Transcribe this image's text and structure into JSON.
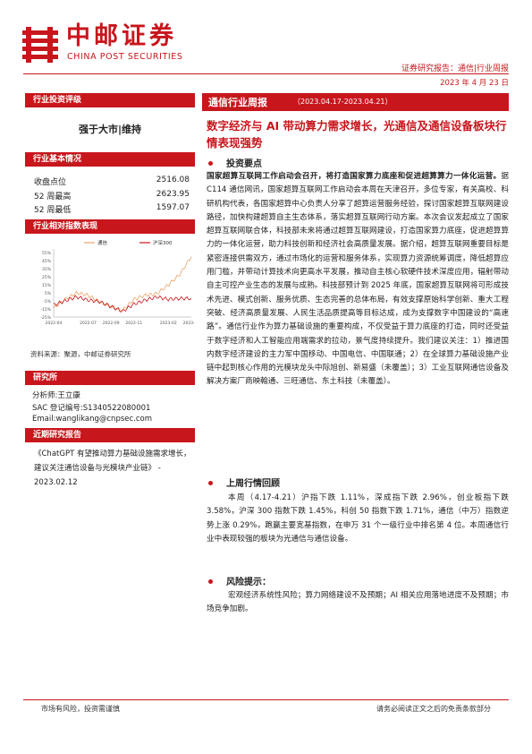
{
  "header": {
    "logo_cn": "中邮证券",
    "logo_en": "CHINA POST SECURITIES",
    "report_tag": "证券研究报告：通信|行业周报",
    "date": "2023 年 4 月 23 日"
  },
  "sidebar": {
    "rating_title": "行业投资评级",
    "rating": "强于大市|维持",
    "basics_title": "行业基本情况",
    "basics": [
      {
        "label": "收盘点位",
        "value": "2516.08"
      },
      {
        "label": "52 周最高",
        "value": "2623.95"
      },
      {
        "label": "52 周最低",
        "value": "1597.07"
      }
    ],
    "chart_title": "行业相对指数表现",
    "source": "资料来源：聚源，中邮证券研究所",
    "research_title": "研究所",
    "analyst": [
      "分析师:王立康",
      "SAC 登记编号:S1340522080001",
      "Email:wanglikang@cnpsec.com"
    ],
    "recent_title": "近期研究报告",
    "recent_text": "《ChatGPT 有望推动算力基础设施需求增长，建议关注通信设备与光模块产业链》 - 2023.02.12"
  },
  "chart_data": {
    "type": "line",
    "title": "",
    "xlabel": "",
    "ylabel": "",
    "x": [
      "2022-04",
      "2022-05",
      "2022-06",
      "2022-07",
      "2022-08",
      "2022-09",
      "2022-10",
      "2022-11",
      "2022-12",
      "2023-01",
      "2023-02",
      "2023-03",
      "2023-04"
    ],
    "xticks": [
      "2022-04",
      "2022-07",
      "2022-09",
      "2022-11",
      "2023-02",
      "2023-04"
    ],
    "yticks": [
      "55%",
      "45%",
      "35%",
      "25%",
      "15%",
      "5%",
      "-5%",
      "-15%",
      "-25%"
    ],
    "ylim": [
      -25,
      55
    ],
    "series": [
      {
        "name": "通信",
        "color": "#e8a36a",
        "values": [
          -14,
          -3,
          5,
          2,
          -6,
          -12,
          -17,
          -3,
          2,
          4,
          15,
          28,
          50
        ]
      },
      {
        "name": "沪深300",
        "color": "#c8161d",
        "values": [
          -10,
          -5,
          0,
          -4,
          -6,
          -12,
          -18,
          -9,
          -4,
          0,
          -3,
          -2,
          -2
        ]
      }
    ]
  },
  "main": {
    "title": "通信行业周报",
    "range": "（2023.04.17-2023.04.21）",
    "headline": "数字经济与 AI 带动算力需求增长，光通信及通信设备板块行情表现强势",
    "sec1_title": "投资要点",
    "sec1_lead": "国家超算互联网工作启动会召开，将打造国家算力底座和促进超算算力一体化运营。",
    "sec1_body": "据 C114 通信网讯，国家超算互联网工作启动会本周在天津召开，多位专家，有关高校、科研机构代表，各国家超算中心负责人分享了超算运营服务经验，探讨国家超算互联网建设路径，加快构建超算自主生态体系，落实超算互联网行动方案。本次会议发起成立了国家超算互联网联合体，科技部未来将通过超算互联网建设，打造国家算力底座，促进超算算力的一体化运营，助力科技创新和经济社会高质量发展。据介绍，超算互联网重要目标是紧密连接供需双方，通过市场化的运营和服务体系，实现算力资源统筹调度，降低超算应用门槛，并带动计算技术向更高水平发展，推动自主核心软硬件技术深度应用，辐射带动自主可控产业生态的发展与成熟。科技部预计到 2025 年底，国家超算互联网将可形成技术先进、模式创新、服务优质、生态完善的总体布局，有效支撑原始科学创新、重大工程突破、经济高质量发展、人民生活品质提高等目标达成，成为支撑数字中国建设的“高速路”。通信行业作为算力基础设施的重要构成，不仅受益于算力底座的打造，同时还受益于数字经济和人工智能应用端需求的拉动，景气度持续提升。我们建议关注：1）推进国内数字经济建设的主力军中国移动、中国电信、中国联通；2）在全球算力基础设施产业链中起到核心作用的光模块龙头中际旭创、新易盛（未覆盖）；3）工业互联网通信设备及解决方案厂商映翰通、三旺通信、东土科技（未覆盖）。",
    "sec2_title": "上周行情回顾",
    "sec2_body": "本周（4.17-4.21）沪指下跌 1.11%，深成指下跌 2.96%，创业板指下跌 3.58%，沪深 300 指数下跌 1.45%，科创 50 指数下跌 1.71%，通信（中万）指数逆势上涨 0.29%，跑赢主要宽基指数，在申万 31 个一级行业中排名第 4 位。本周通信行业中表现较强的板块为光通信与通信设备。",
    "sec3_title": "风险提示：",
    "sec3_body": "宏观经济系统性风险；算力网络建设不及预期；AI 相关应用落地进度不及预期；市场竞争加剧。"
  },
  "footer": {
    "left": "市场有风险，投资需谨慎",
    "right": "请务必阅读正文之后的免责条款部分"
  },
  "colors": {
    "brand": "#c8161d",
    "chart_orange": "#e8a36a"
  }
}
